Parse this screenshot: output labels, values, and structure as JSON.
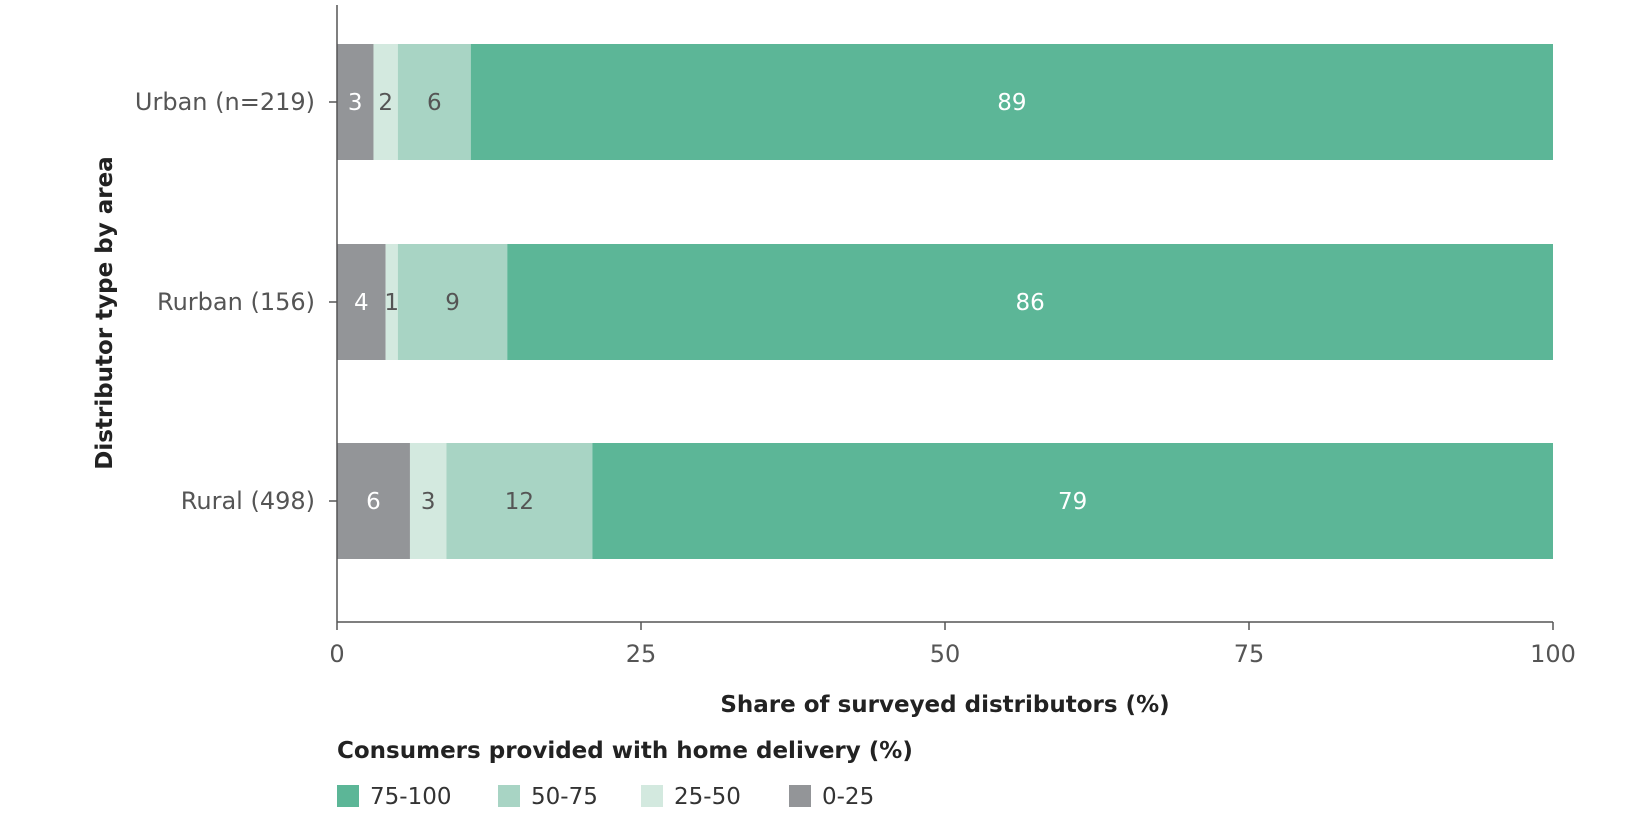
{
  "chart_data": {
    "type": "bar",
    "orientation": "horizontal",
    "stacked": true,
    "title": "",
    "xlabel": "Share of surveyed distributors (%)",
    "ylabel": "Distributor type by area",
    "xlim": [
      0,
      100
    ],
    "xticks": [
      "0",
      "25",
      "50",
      "75",
      "100"
    ],
    "categories": [
      "Urban (n=219)",
      "Rurban (156)",
      "Rural (498)"
    ],
    "series": [
      {
        "name": "0-25",
        "color": "#939598",
        "label_color": "#ffffff",
        "values": [
          3,
          4,
          6
        ]
      },
      {
        "name": "25-50",
        "color": "#d3e9df",
        "label_color": "#555555",
        "values": [
          2,
          1,
          3
        ]
      },
      {
        "name": "50-75",
        "color": "#a8d4c4",
        "label_color": "#555555",
        "values": [
          6,
          9,
          12
        ]
      },
      {
        "name": "75-100",
        "color": "#5cb697",
        "label_color": "#ffffff",
        "values": [
          89,
          86,
          79
        ]
      }
    ],
    "legend_title": "Consumers provided with home delivery (%)",
    "legend_order": [
      "75-100",
      "50-75",
      "25-50",
      "0-25"
    ],
    "legend_position": "bottom-left",
    "grid": false
  }
}
